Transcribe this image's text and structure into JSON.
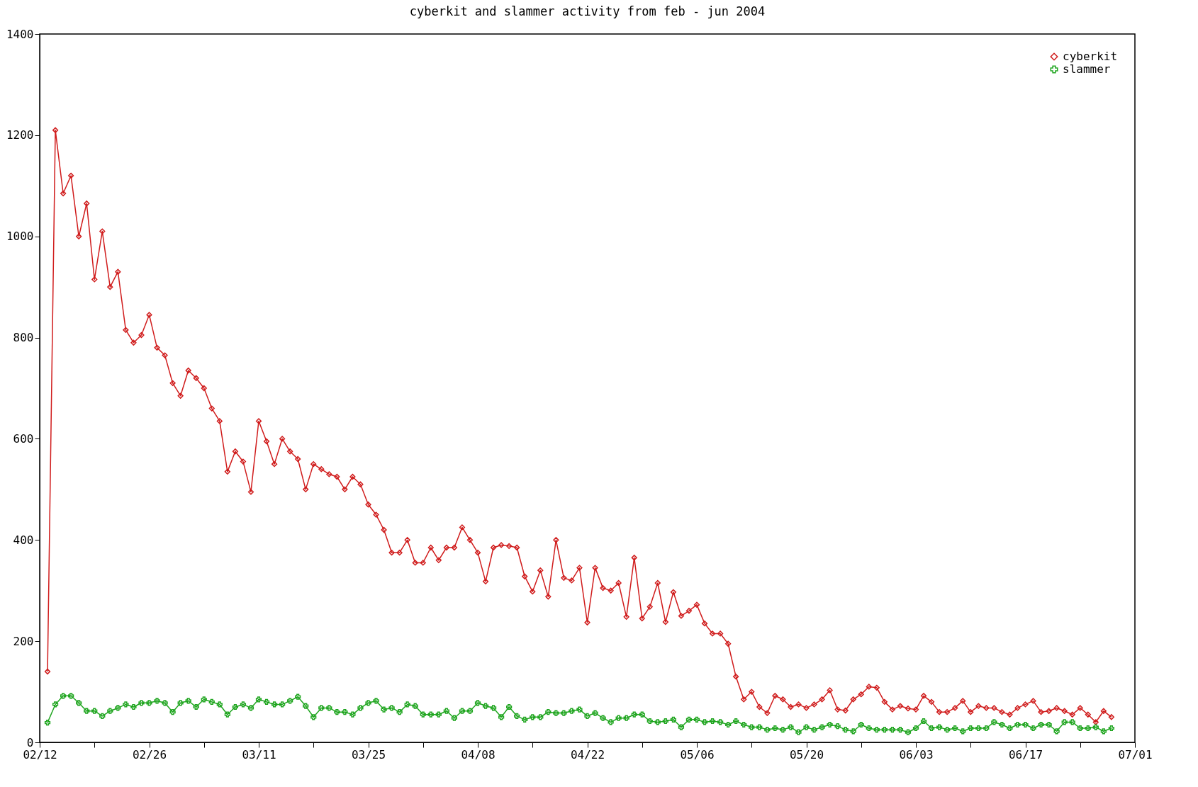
{
  "chart_data": {
    "type": "line",
    "title": "cyberkit and slammer activity from feb - jun 2004",
    "legend": "top right",
    "x": [
      "2004-02-13",
      "2004-02-14",
      "2004-02-15",
      "2004-02-16",
      "2004-02-17",
      "2004-02-18",
      "2004-02-19",
      "2004-02-20",
      "2004-02-21",
      "2004-02-22",
      "2004-02-23",
      "2004-02-24",
      "2004-02-25",
      "2004-02-26",
      "2004-02-27",
      "2004-02-28",
      "2004-02-29",
      "2004-03-01",
      "2004-03-02",
      "2004-03-03",
      "2004-03-04",
      "2004-03-05",
      "2004-03-06",
      "2004-03-07",
      "2004-03-08",
      "2004-03-09",
      "2004-03-10",
      "2004-03-11",
      "2004-03-12",
      "2004-03-13",
      "2004-03-14",
      "2004-03-15",
      "2004-03-16",
      "2004-03-17",
      "2004-03-18",
      "2004-03-19",
      "2004-03-20",
      "2004-03-21",
      "2004-03-22",
      "2004-03-23",
      "2004-03-24",
      "2004-03-25",
      "2004-03-26",
      "2004-03-27",
      "2004-03-28",
      "2004-03-29",
      "2004-03-30",
      "2004-03-31",
      "2004-04-01",
      "2004-04-02",
      "2004-04-03",
      "2004-04-04",
      "2004-04-05",
      "2004-04-06",
      "2004-04-07",
      "2004-04-08",
      "2004-04-09",
      "2004-04-10",
      "2004-04-11",
      "2004-04-12",
      "2004-04-13",
      "2004-04-14",
      "2004-04-15",
      "2004-04-16",
      "2004-04-17",
      "2004-04-18",
      "2004-04-19",
      "2004-04-20",
      "2004-04-21",
      "2004-04-22",
      "2004-04-23",
      "2004-04-24",
      "2004-04-25",
      "2004-04-26",
      "2004-04-27",
      "2004-04-28",
      "2004-04-29",
      "2004-04-30",
      "2004-05-01",
      "2004-05-02",
      "2004-05-03",
      "2004-05-04",
      "2004-05-05",
      "2004-05-06",
      "2004-05-07",
      "2004-05-08",
      "2004-05-09",
      "2004-05-10",
      "2004-05-11",
      "2004-05-12",
      "2004-05-13",
      "2004-05-14",
      "2004-05-15",
      "2004-05-16",
      "2004-05-17",
      "2004-05-18",
      "2004-05-19",
      "2004-05-20",
      "2004-05-21",
      "2004-05-22",
      "2004-05-23",
      "2004-05-24",
      "2004-05-25",
      "2004-05-26",
      "2004-05-27",
      "2004-05-28",
      "2004-05-29",
      "2004-05-30",
      "2004-05-31",
      "2004-06-01",
      "2004-06-02",
      "2004-06-03",
      "2004-06-04",
      "2004-06-05",
      "2004-06-06",
      "2004-06-07",
      "2004-06-08",
      "2004-06-09",
      "2004-06-10",
      "2004-06-11",
      "2004-06-12",
      "2004-06-13",
      "2004-06-14",
      "2004-06-15",
      "2004-06-16",
      "2004-06-17",
      "2004-06-18",
      "2004-06-19",
      "2004-06-20",
      "2004-06-21",
      "2004-06-22",
      "2004-06-23",
      "2004-06-24",
      "2004-06-25",
      "2004-06-26",
      "2004-06-27",
      "2004-06-28"
    ],
    "series": [
      {
        "name": "cyberkit",
        "color": "#d01c1c",
        "marker": "diamond",
        "values": [
          140,
          1210,
          1085,
          1120,
          1000,
          1065,
          915,
          1010,
          900,
          930,
          815,
          790,
          805,
          845,
          780,
          765,
          710,
          685,
          735,
          720,
          700,
          660,
          635,
          535,
          575,
          555,
          495,
          635,
          595,
          550,
          600,
          575,
          560,
          500,
          550,
          540,
          530,
          525,
          500,
          525,
          510,
          470,
          450,
          420,
          375,
          375,
          400,
          355,
          355,
          385,
          360,
          385,
          385,
          425,
          400,
          375,
          318,
          385,
          390,
          388,
          385,
          328,
          298,
          340,
          288,
          400,
          325,
          320,
          345,
          237,
          345,
          305,
          300,
          315,
          248,
          365,
          245,
          268,
          315,
          238,
          297,
          250,
          260,
          272,
          235,
          215,
          215,
          195,
          130,
          85,
          100,
          70,
          58,
          92,
          85,
          70,
          75,
          68,
          75,
          85,
          103,
          65,
          63,
          85,
          95,
          110,
          108,
          80,
          65,
          72,
          67,
          65,
          92,
          80,
          60,
          60,
          68,
          82,
          60,
          72,
          68,
          68,
          60,
          55,
          68,
          75,
          82,
          60,
          62,
          68,
          62,
          55,
          68,
          55,
          40,
          62,
          50
        ]
      },
      {
        "name": "slammer",
        "color": "#1fa51f",
        "marker": "cross",
        "values": [
          39,
          75,
          92,
          92,
          78,
          62,
          62,
          52,
          62,
          68,
          75,
          70,
          78,
          78,
          82,
          78,
          60,
          78,
          82,
          70,
          85,
          80,
          75,
          55,
          70,
          75,
          68,
          85,
          80,
          75,
          75,
          82,
          90,
          72,
          50,
          68,
          68,
          60,
          60,
          55,
          68,
          78,
          82,
          65,
          68,
          60,
          75,
          72,
          55,
          55,
          55,
          62,
          48,
          62,
          62,
          78,
          72,
          68,
          50,
          70,
          52,
          45,
          50,
          50,
          60,
          58,
          58,
          62,
          65,
          52,
          58,
          48,
          40,
          48,
          48,
          55,
          55,
          42,
          40,
          42,
          45,
          30,
          45,
          45,
          40,
          42,
          40,
          35,
          42,
          35,
          30,
          30,
          25,
          28,
          25,
          30,
          20,
          30,
          25,
          30,
          35,
          32,
          25,
          22,
          35,
          28,
          25,
          25,
          25,
          25,
          20,
          28,
          42,
          28,
          30,
          25,
          28,
          22,
          28,
          28,
          28,
          40,
          35,
          28,
          35,
          35,
          28,
          35,
          35,
          22,
          40,
          40,
          28,
          28,
          30,
          22,
          28
        ]
      }
    ],
    "xlim": [
      "2004-02-12",
      "2004-07-01"
    ],
    "xticks": [
      {
        "value": "2004-02-12",
        "label": "02/12"
      },
      {
        "value": "2004-02-19",
        "label": null
      },
      {
        "value": "2004-02-26",
        "label": "02/26"
      },
      {
        "value": "2004-03-04",
        "label": null
      },
      {
        "value": "2004-03-11",
        "label": "03/11"
      },
      {
        "value": "2004-03-18",
        "label": null
      },
      {
        "value": "2004-03-25",
        "label": "03/25"
      },
      {
        "value": "2004-04-01",
        "label": null
      },
      {
        "value": "2004-04-08",
        "label": "04/08"
      },
      {
        "value": "2004-04-15",
        "label": null
      },
      {
        "value": "2004-04-22",
        "label": "04/22"
      },
      {
        "value": "2004-04-29",
        "label": null
      },
      {
        "value": "2004-05-06",
        "label": "05/06"
      },
      {
        "value": "2004-05-13",
        "label": null
      },
      {
        "value": "2004-05-20",
        "label": "05/20"
      },
      {
        "value": "2004-05-27",
        "label": null
      },
      {
        "value": "2004-06-03",
        "label": "06/03"
      },
      {
        "value": "2004-06-10",
        "label": null
      },
      {
        "value": "2004-06-17",
        "label": "06/17"
      },
      {
        "value": "2004-06-24",
        "label": null
      },
      {
        "value": "2004-07-01",
        "label": "07/01"
      }
    ],
    "ylim": [
      0,
      1400
    ],
    "yticks": [
      0,
      200,
      400,
      600,
      800,
      1000,
      1200,
      1400
    ]
  }
}
